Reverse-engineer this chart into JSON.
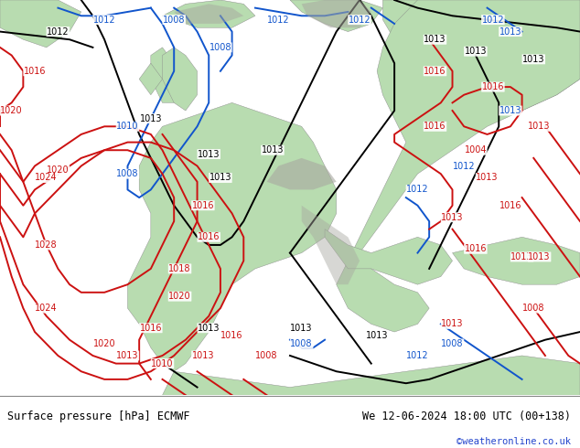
{
  "footer_left": "Surface pressure [hPa] ECMWF",
  "footer_right": "We 12-06-2024 18:00 UTC (00+138)",
  "footer_url": "©weatheronline.co.uk",
  "footer_bg": "#e8e8e8",
  "ocean_color": "#e8e8e8",
  "land_color": "#b8dcb0",
  "gray_color": "#a8a8a0",
  "fig_width": 6.34,
  "fig_height": 4.9,
  "dpi": 100
}
